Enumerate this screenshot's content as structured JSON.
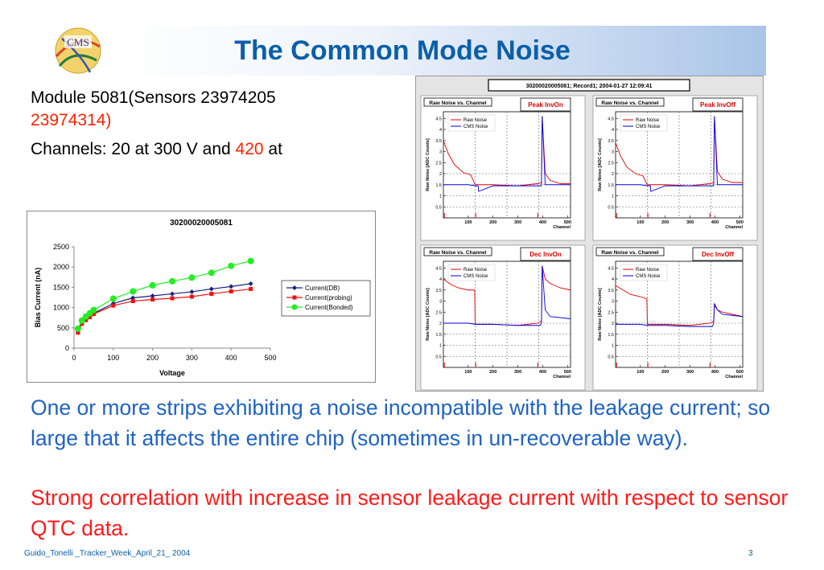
{
  "slide": {
    "title": "The Common Mode Noise",
    "logo_text": "CMS",
    "module_line": "Module 5081(Sensors 23974205",
    "sensor2": "23974314)",
    "channels_prefix": "Channels: 20 at 300 V and ",
    "channels_red": "420",
    "channels_suffix": " at",
    "para_blue": "One or more strips exhibiting a noise incompatible with the leakage current; so large that it affects the entire chip (sometimes in un-recoverable way).",
    "para_red": "Strong correlation with increase in sensor leakage current with respect to sensor QTC data.",
    "footer_left": "Guido_Tonelli _Tracker_Week_April_21_ 2004",
    "footer_right": "3"
  },
  "colors": {
    "title": "#0b5fa8",
    "blue_text": "#1f63c4",
    "red_text": "#ff1a1a"
  },
  "chart_data": [
    {
      "type": "line",
      "title": "30200020005081",
      "xlabel": "Voltage",
      "ylabel": "Bias Current (nA)",
      "xlim": [
        0,
        500
      ],
      "ylim": [
        0,
        2500
      ],
      "xticks": [
        0,
        100,
        200,
        300,
        400,
        500
      ],
      "yticks": [
        0,
        500,
        1000,
        1500,
        2000,
        2500
      ],
      "legend_position": "right",
      "series": [
        {
          "name": "Current(DB)",
          "color": "#1a237e",
          "marker": "diamond",
          "x": [
            10,
            20,
            30,
            40,
            50,
            100,
            150,
            200,
            250,
            300,
            350,
            400,
            450
          ],
          "y": [
            390,
            610,
            700,
            780,
            860,
            1100,
            1240,
            1290,
            1340,
            1390,
            1460,
            1520,
            1590
          ]
        },
        {
          "name": "Current(probing)",
          "color": "#ee1111",
          "marker": "square",
          "x": [
            10,
            20,
            30,
            40,
            50,
            100,
            150,
            200,
            250,
            300,
            350,
            400,
            450
          ],
          "y": [
            380,
            600,
            690,
            760,
            840,
            1050,
            1160,
            1200,
            1230,
            1270,
            1340,
            1400,
            1460
          ]
        },
        {
          "name": "Current(Bonded)",
          "color": "#22ee22",
          "marker": "circle",
          "x": [
            10,
            20,
            30,
            40,
            50,
            100,
            150,
            200,
            250,
            300,
            350,
            400,
            450
          ],
          "y": [
            480,
            680,
            780,
            860,
            940,
            1220,
            1400,
            1550,
            1650,
            1740,
            1860,
            2030,
            2150
          ]
        }
      ]
    },
    {
      "type": "line",
      "title": "Raw Noise vs. Channel",
      "label": "Peak InvOn",
      "xlabel": "Channel",
      "ylabel": "Raw Noise [ADC Counts]",
      "xlim": [
        0,
        512
      ],
      "ylim": [
        0,
        4.8
      ],
      "xticks": [
        100,
        200,
        300,
        400,
        500
      ],
      "yticks": [
        0.5,
        1,
        1.5,
        2,
        2.5,
        3,
        3.5,
        4,
        4.5
      ],
      "legend_position": "top",
      "series": [
        {
          "name": "Raw Noise",
          "color": "#e00000",
          "x": [
            0,
            20,
            45,
            80,
            110,
            128,
            200,
            300,
            380,
            395,
            398,
            410,
            430,
            470,
            512
          ],
          "y": [
            3.5,
            2.9,
            2.4,
            2.05,
            1.95,
            1.5,
            1.5,
            1.45,
            1.55,
            1.6,
            4.6,
            2.0,
            1.7,
            1.55,
            1.55
          ]
        },
        {
          "name": "CMS Noise",
          "color": "#0000dd",
          "x": [
            0,
            100,
            128,
            140,
            142,
            200,
            300,
            390,
            395,
            398,
            410,
            512
          ],
          "y": [
            1.5,
            1.5,
            1.45,
            1.45,
            1.2,
            1.45,
            1.45,
            1.45,
            1.45,
            4.6,
            1.5,
            1.5
          ]
        }
      ]
    },
    {
      "type": "line",
      "title": "Raw Noise vs. Channel",
      "label": "Peak InvOff",
      "xlabel": "Channel",
      "ylabel": "Raw Noise [ADC Counts]",
      "xlim": [
        0,
        512
      ],
      "ylim": [
        0,
        4.8
      ],
      "xticks": [
        100,
        200,
        300,
        400,
        500
      ],
      "yticks": [
        0.5,
        1,
        1.5,
        2,
        2.5,
        3,
        3.5,
        4,
        4.5
      ],
      "legend_position": "top",
      "series": [
        {
          "name": "Raw Noise",
          "color": "#e00000",
          "x": [
            0,
            20,
            45,
            80,
            110,
            128,
            200,
            300,
            380,
            395,
            398,
            410,
            430,
            470,
            512
          ],
          "y": [
            3.4,
            2.8,
            2.3,
            2.0,
            1.9,
            1.5,
            1.5,
            1.45,
            1.55,
            1.6,
            4.6,
            2.1,
            1.75,
            1.6,
            1.6
          ]
        },
        {
          "name": "CMS Noise",
          "color": "#0000dd",
          "x": [
            0,
            100,
            128,
            140,
            142,
            200,
            300,
            390,
            395,
            398,
            410,
            512
          ],
          "y": [
            1.5,
            1.5,
            1.45,
            1.45,
            1.2,
            1.45,
            1.45,
            1.45,
            1.45,
            4.6,
            1.5,
            1.5
          ]
        }
      ]
    },
    {
      "type": "line",
      "title": "Raw Noise vs. Channel",
      "label": "Dec InvOn",
      "xlabel": "Channel",
      "ylabel": "Raw Noise [ADC Counts]",
      "xlim": [
        0,
        512
      ],
      "ylim": [
        0,
        4.8
      ],
      "xticks": [
        100,
        200,
        300,
        400,
        500
      ],
      "yticks": [
        0.5,
        1,
        1.5,
        2,
        2.5,
        3,
        3.5,
        4,
        4.5
      ],
      "legend_position": "top",
      "series": [
        {
          "name": "Raw Noise",
          "color": "#e00000",
          "x": [
            0,
            30,
            60,
            100,
            126,
            128,
            200,
            300,
            380,
            395,
            398,
            410,
            430,
            470,
            512
          ],
          "y": [
            4.0,
            3.75,
            3.6,
            3.5,
            3.5,
            1.95,
            1.95,
            1.9,
            2.0,
            2.1,
            4.6,
            4.0,
            3.8,
            3.6,
            3.5
          ]
        },
        {
          "name": "CMS Noise",
          "color": "#0000dd",
          "x": [
            0,
            100,
            128,
            200,
            300,
            390,
            395,
            398,
            410,
            430,
            512
          ],
          "y": [
            2.0,
            2.0,
            1.95,
            1.95,
            1.9,
            1.9,
            2.0,
            4.6,
            2.6,
            2.3,
            2.2
          ]
        }
      ]
    },
    {
      "type": "line",
      "title": "Raw Noise vs. Channel",
      "label": "Dec InvOff",
      "xlabel": "Channel",
      "ylabel": "Raw Noise [ADC Counts]",
      "xlim": [
        0,
        512
      ],
      "ylim": [
        0,
        4.8
      ],
      "xticks": [
        100,
        200,
        300,
        400,
        500
      ],
      "yticks": [
        0.5,
        1,
        1.5,
        2,
        2.5,
        3,
        3.5,
        4,
        4.5
      ],
      "legend_position": "top",
      "series": [
        {
          "name": "Raw Noise",
          "color": "#e00000",
          "x": [
            0,
            30,
            60,
            100,
            126,
            128,
            200,
            300,
            380,
            395,
            398,
            410,
            430,
            470,
            512
          ],
          "y": [
            3.7,
            3.5,
            3.3,
            3.2,
            3.1,
            1.95,
            1.95,
            1.9,
            2.0,
            2.1,
            2.8,
            2.6,
            2.5,
            2.4,
            2.3
          ]
        },
        {
          "name": "CMS Noise",
          "color": "#0000dd",
          "x": [
            0,
            100,
            128,
            200,
            300,
            390,
            395,
            398,
            410,
            430,
            512
          ],
          "y": [
            1.95,
            1.95,
            1.9,
            1.9,
            1.85,
            1.85,
            2.0,
            2.9,
            2.6,
            2.4,
            2.3
          ]
        }
      ]
    }
  ],
  "root_canvas_title": "30200020005081; Record1; 2004-01-27 12:09:41"
}
